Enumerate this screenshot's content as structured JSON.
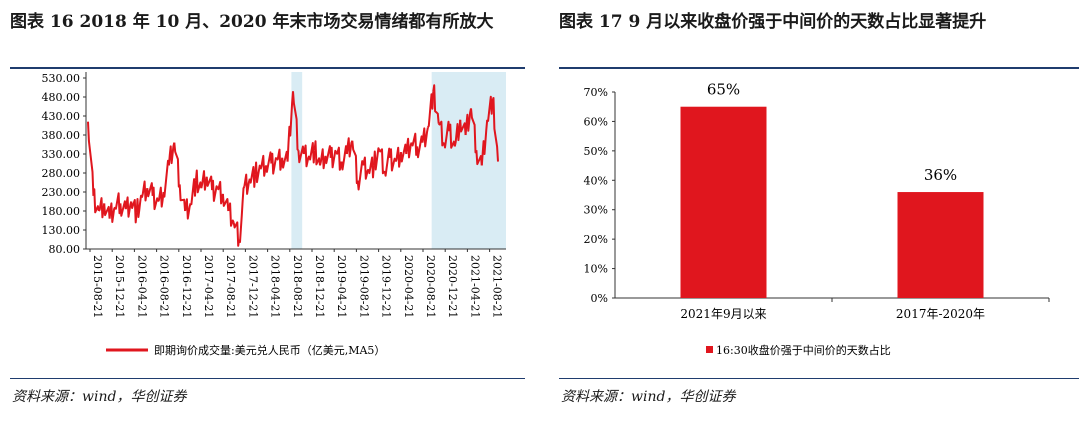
{
  "left": {
    "figure_title": "图表 16  2018 年 10 月、2020 年末市场交易情绪都有所放大",
    "source": "资料来源：wind，华创证券"
  },
  "right": {
    "figure_title": "图表 17  9 月以来收盘价强于中间价的天数占比显著提升",
    "source": "资料来源：wind，华创证券"
  },
  "chart_data": [
    {
      "type": "line",
      "title": "",
      "xlabel": "",
      "ylabel": "",
      "ylim": [
        80,
        530
      ],
      "yticks": [
        "530.00",
        "480.00",
        "430.00",
        "380.00",
        "330.00",
        "280.00",
        "230.00",
        "180.00",
        "130.00",
        "80.00"
      ],
      "xticks": [
        "2015-08-21",
        "2015-12-21",
        "2016-04-21",
        "2016-08-21",
        "2016-12-21",
        "2017-04-21",
        "2017-08-21",
        "2017-12-21",
        "2018-04-21",
        "2018-08-21",
        "2018-12-21",
        "2019-04-21",
        "2019-08-21",
        "2019-12-21",
        "2020-04-21",
        "2020-08-21",
        "2020-12-21",
        "2021-04-21",
        "2021-08-21"
      ],
      "shaded_ranges": [
        [
          "2018-10",
          "2018-12"
        ],
        [
          "2020-12",
          "2021-12"
        ]
      ],
      "legend": "bottom",
      "series": [
        {
          "name": "即期询价成交量:美元兑人民币（亿美元,MA5）",
          "color": "#e0161e",
          "points": [
            [
              "2015-08",
              415
            ],
            [
              "2015-09",
              220
            ],
            [
              "2015-10",
              180
            ],
            [
              "2015-11",
              200
            ],
            [
              "2015-12",
              160
            ],
            [
              "2016-01",
              190
            ],
            [
              "2016-02",
              200
            ],
            [
              "2016-03",
              185
            ],
            [
              "2016-04",
              205
            ],
            [
              "2016-05",
              175
            ],
            [
              "2016-06",
              215
            ],
            [
              "2016-07",
              240
            ],
            [
              "2016-08",
              220
            ],
            [
              "2016-09",
              205
            ],
            [
              "2016-10",
              230
            ],
            [
              "2016-11",
              300
            ],
            [
              "2016-12",
              360
            ],
            [
              "2017-01",
              250
            ],
            [
              "2017-02",
              180
            ],
            [
              "2017-03",
              200
            ],
            [
              "2017-04",
              260
            ],
            [
              "2017-05",
              240
            ],
            [
              "2017-06",
              270
            ],
            [
              "2017-07",
              235
            ],
            [
              "2017-08",
              240
            ],
            [
              "2017-09",
              225
            ],
            [
              "2017-10",
              180
            ],
            [
              "2017-11",
              150
            ],
            [
              "2017-12",
              105
            ],
            [
              "2018-01",
              245
            ],
            [
              "2018-02",
              265
            ],
            [
              "2018-03",
              275
            ],
            [
              "2018-04",
              290
            ],
            [
              "2018-05",
              300
            ],
            [
              "2018-06",
              305
            ],
            [
              "2018-07",
              315
            ],
            [
              "2018-08",
              320
            ],
            [
              "2018-09",
              310
            ],
            [
              "2018-10",
              495
            ],
            [
              "2018-11",
              340
            ],
            [
              "2018-12",
              330
            ],
            [
              "2019-01",
              325
            ],
            [
              "2019-02",
              340
            ],
            [
              "2019-03",
              300
            ],
            [
              "2019-04",
              325
            ],
            [
              "2019-05",
              320
            ],
            [
              "2019-06",
              335
            ],
            [
              "2019-07",
              310
            ],
            [
              "2019-08",
              330
            ],
            [
              "2019-09",
              365
            ],
            [
              "2019-10",
              260
            ],
            [
              "2019-11",
              300
            ],
            [
              "2019-12",
              290
            ],
            [
              "2020-01",
              300
            ],
            [
              "2020-02",
              340
            ],
            [
              "2020-03",
              285
            ],
            [
              "2020-04",
              320
            ],
            [
              "2020-05",
              310
            ],
            [
              "2020-06",
              335
            ],
            [
              "2020-07",
              330
            ],
            [
              "2020-08",
              360
            ],
            [
              "2020-09",
              350
            ],
            [
              "2020-10",
              360
            ],
            [
              "2020-11",
              400
            ],
            [
              "2020-12",
              495
            ],
            [
              "2021-01",
              410
            ],
            [
              "2021-02",
              360
            ],
            [
              "2021-03",
              390
            ],
            [
              "2021-04",
              350
            ],
            [
              "2021-05",
              420
            ],
            [
              "2021-06",
              380
            ],
            [
              "2021-07",
              450
            ],
            [
              "2021-08",
              340
            ],
            [
              "2021-09",
              300
            ],
            [
              "2021-10",
              420
            ],
            [
              "2021-11",
              475
            ],
            [
              "2021-12",
              310
            ]
          ]
        }
      ]
    },
    {
      "type": "bar",
      "title": "",
      "xlabel": "",
      "ylabel": "",
      "ylim": [
        0,
        70
      ],
      "yticks": [
        "70%",
        "60%",
        "50%",
        "40%",
        "30%",
        "20%",
        "10%",
        "0%"
      ],
      "categories": [
        "2021年9月以来",
        "2017年-2020年"
      ],
      "values": [
        65,
        36
      ],
      "data_labels": [
        "65%",
        "36%"
      ],
      "legend": "bottom",
      "series": [
        {
          "name": "16:30收盘价强于中间价的天数占比",
          "color": "#e0161e",
          "values": [
            65,
            36
          ]
        }
      ]
    }
  ]
}
